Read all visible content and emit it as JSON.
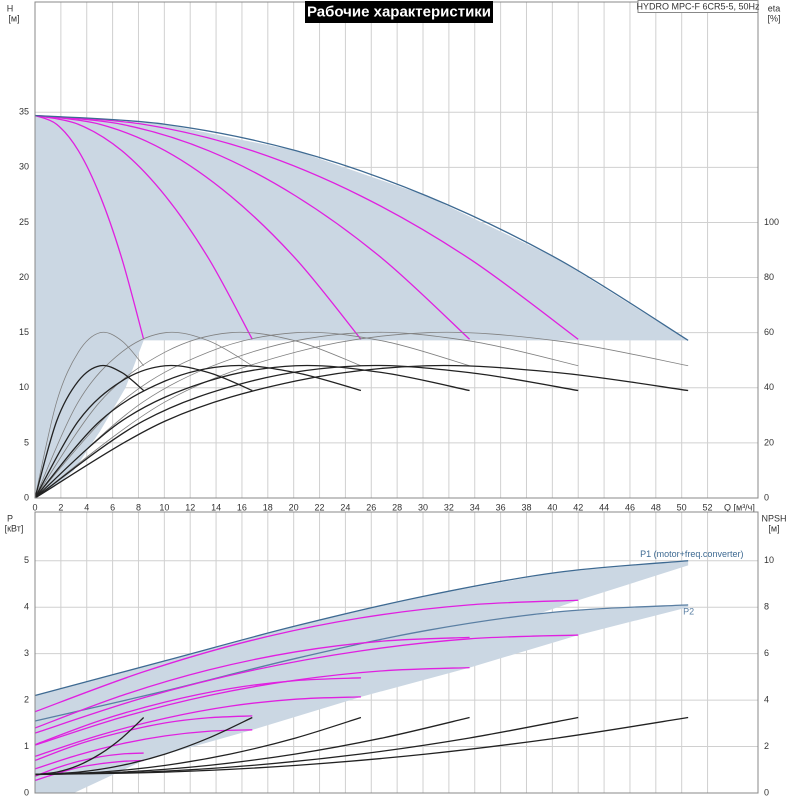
{
  "title": "Рабочие характеристики",
  "model": "HYDRO MPC-F 6CR5-5, 50Hz",
  "chart_data": [
    {
      "type": "line",
      "x_label": "Q [м³/ч]",
      "y_label": "H",
      "y_unit": "[м]",
      "y2_label": "eta",
      "y2_unit": "[%]",
      "xlim": [
        0,
        55.9
      ],
      "xticks": [
        0,
        2,
        4,
        6,
        8,
        10,
        12,
        14,
        16,
        18,
        20,
        22,
        24,
        26,
        28,
        30,
        32,
        34,
        36,
        38,
        40,
        42,
        44,
        46,
        48,
        50,
        52
      ],
      "ylim": [
        0,
        45
      ],
      "yticks": [
        0,
        5,
        10,
        15,
        20,
        25,
        30,
        35
      ],
      "y2lim": [
        0,
        180
      ],
      "y2ticks": [
        0,
        20,
        40,
        60,
        80,
        100
      ],
      "grid": true,
      "areas": [
        {
          "color": "#cbd7e3",
          "x": [
            0,
            10.1,
            20.2,
            30.3,
            40.4,
            50.5,
            8.4,
            7,
            5,
            3,
            1.5,
            0
          ],
          "values": [
            34.7,
            33.9,
            31.5,
            27.4,
            21.7,
            14.3,
            14.3,
            10,
            6,
            2.5,
            1,
            0
          ]
        }
      ],
      "series": [
        {
          "color": "#e020e0",
          "x": [
            0,
            1.68,
            3.36,
            5.04,
            6.72,
            8.4
          ],
          "values": [
            34.7,
            33.9,
            31.5,
            27.4,
            21.7,
            14.4
          ]
        },
        {
          "color": "#e020e0",
          "x": [
            0,
            3.36,
            6.72,
            10.08,
            13.44,
            16.8
          ],
          "values": [
            34.7,
            33.9,
            31.5,
            27.4,
            21.7,
            14.4
          ]
        },
        {
          "color": "#e020e0",
          "x": [
            0,
            5.04,
            10.08,
            15.12,
            20.16,
            25.2
          ],
          "values": [
            34.7,
            33.9,
            31.5,
            27.4,
            21.7,
            14.4
          ]
        },
        {
          "color": "#e020e0",
          "x": [
            0,
            6.72,
            13.44,
            20.16,
            26.88,
            33.6
          ],
          "values": [
            34.7,
            33.9,
            31.5,
            27.4,
            21.7,
            14.4
          ]
        },
        {
          "color": "#e020e0",
          "x": [
            0,
            8.4,
            16.8,
            25.2,
            33.6,
            42
          ],
          "values": [
            34.7,
            33.9,
            31.5,
            27.4,
            21.7,
            14.4
          ]
        },
        {
          "color": "#3e6a92",
          "x": [
            0,
            10.1,
            20.2,
            30.3,
            40.4,
            50.5
          ],
          "values": [
            34.7,
            33.9,
            31.5,
            27.4,
            21.7,
            14.3
          ]
        },
        {
          "color": "#808080",
          "axis": "y2",
          "x": [
            0,
            1.68,
            3.36,
            5.04,
            6.72,
            8.4
          ],
          "values": [
            0,
            35,
            53,
            60,
            57,
            48
          ]
        },
        {
          "color": "#808080",
          "axis": "y2",
          "x": [
            0,
            3.36,
            6.72,
            10.08,
            13.44,
            16.8
          ],
          "values": [
            0,
            35,
            53,
            60,
            57,
            48
          ]
        },
        {
          "color": "#808080",
          "axis": "y2",
          "x": [
            0,
            5.04,
            10.08,
            15.12,
            20.16,
            25.2
          ],
          "values": [
            0,
            35,
            53,
            60,
            57,
            48
          ]
        },
        {
          "color": "#808080",
          "axis": "y2",
          "x": [
            0,
            6.72,
            13.44,
            20.16,
            26.88,
            33.6
          ],
          "values": [
            0,
            35,
            53,
            60,
            57,
            48
          ]
        },
        {
          "color": "#808080",
          "axis": "y2",
          "x": [
            0,
            8.4,
            16.8,
            25.2,
            33.6,
            42
          ],
          "values": [
            0,
            35,
            53,
            60,
            57,
            48
          ]
        },
        {
          "color": "#808080",
          "axis": "y2",
          "x": [
            0,
            10.1,
            20.2,
            30.3,
            40.4,
            50.5
          ],
          "values": [
            0,
            35,
            53,
            60,
            57,
            48
          ]
        },
        {
          "color": "#222222",
          "axis": "y2",
          "x": [
            0,
            1.68,
            3.36,
            5.04,
            6.72,
            8.4
          ],
          "values": [
            0,
            28,
            42.5,
            48,
            45.5,
            39
          ]
        },
        {
          "color": "#222222",
          "axis": "y2",
          "x": [
            0,
            3.36,
            6.72,
            10.08,
            13.44,
            16.8
          ],
          "values": [
            0,
            28,
            42.5,
            48,
            45.5,
            39
          ]
        },
        {
          "color": "#222222",
          "axis": "y2",
          "x": [
            0,
            5.04,
            10.08,
            15.12,
            20.16,
            25.2
          ],
          "values": [
            0,
            28,
            42.5,
            48,
            45.5,
            39
          ]
        },
        {
          "color": "#222222",
          "axis": "y2",
          "x": [
            0,
            6.72,
            13.44,
            20.16,
            26.88,
            33.6
          ],
          "values": [
            0,
            28,
            42.5,
            48,
            45.5,
            39
          ]
        },
        {
          "color": "#222222",
          "axis": "y2",
          "x": [
            0,
            8.4,
            16.8,
            25.2,
            33.6,
            42
          ],
          "values": [
            0,
            28,
            42.5,
            48,
            45.5,
            39
          ]
        },
        {
          "color": "#222222",
          "axis": "y2",
          "x": [
            0,
            10.1,
            20.2,
            30.3,
            40.4,
            50.5
          ],
          "values": [
            0,
            28,
            42.5,
            48,
            45.5,
            39
          ]
        }
      ]
    },
    {
      "type": "line",
      "y_label": "P",
      "y_unit": "[кВт]",
      "y2_label": "NPSH",
      "y2_unit": "[м]",
      "xlim": [
        0,
        55.9
      ],
      "ylim": [
        0,
        6.05
      ],
      "yticks": [
        0,
        1,
        2,
        3,
        4,
        5
      ],
      "y2lim": [
        0,
        12.1
      ],
      "y2ticks": [
        0,
        2,
        4,
        6,
        8,
        10
      ],
      "grid": true,
      "areas": [
        {
          "color": "#cbd7e3",
          "x": [
            0,
            10.1,
            20.2,
            30.3,
            40.4,
            50.5,
            50.5,
            42,
            33.6,
            25.2,
            16.8,
            8.4,
            3,
            0
          ],
          "values": [
            2.1,
            2.85,
            3.6,
            4.25,
            4.75,
            5.0,
            4.9,
            4.15,
            3.35,
            2.48,
            1.66,
            0.86,
            0,
            0
          ]
        },
        {
          "color": "#cbd7e3",
          "x": [
            0,
            10.1,
            20.2,
            30.3,
            40.4,
            50.5,
            50.5,
            42,
            33.6,
            25.2,
            16.8,
            8.4,
            3,
            0
          ],
          "values": [
            1.55,
            2.2,
            2.9,
            3.5,
            3.9,
            4.05,
            4.0,
            3.4,
            2.7,
            2.07,
            1.36,
            0.7,
            0,
            0
          ]
        }
      ],
      "series": [
        {
          "name": "P1 (motor+freq.converter)",
          "color": "#3e6a92",
          "x": [
            0,
            10.1,
            20.2,
            30.3,
            40.4,
            50.5
          ],
          "values": [
            2.1,
            2.85,
            3.6,
            4.25,
            4.75,
            5.0
          ]
        },
        {
          "name": "P2",
          "color": "#5a7fa3",
          "x": [
            0,
            10.1,
            20.2,
            30.3,
            40.4,
            50.5
          ],
          "values": [
            1.55,
            2.2,
            2.9,
            3.5,
            3.9,
            4.05
          ]
        },
        {
          "color": "#e020e0",
          "x": [
            0,
            1.68,
            3.36,
            5.04,
            6.72,
            8.4
          ],
          "values": [
            0.36,
            0.54,
            0.68,
            0.78,
            0.84,
            0.86
          ]
        },
        {
          "color": "#e020e0",
          "x": [
            0,
            3.36,
            6.72,
            10.08,
            13.44,
            16.8
          ],
          "values": [
            0.7,
            1.05,
            1.31,
            1.51,
            1.62,
            1.66
          ]
        },
        {
          "color": "#e020e0",
          "x": [
            0,
            5.04,
            10.08,
            15.12,
            20.16,
            25.2
          ],
          "values": [
            1.04,
            1.56,
            1.96,
            2.25,
            2.42,
            2.48
          ]
        },
        {
          "color": "#e020e0",
          "x": [
            0,
            6.72,
            13.44,
            20.16,
            26.88,
            33.6
          ],
          "values": [
            1.4,
            2.1,
            2.65,
            3.04,
            3.27,
            3.35
          ]
        },
        {
          "color": "#e020e0",
          "x": [
            0,
            8.4,
            16.8,
            25.2,
            33.6,
            42
          ],
          "values": [
            1.75,
            2.61,
            3.29,
            3.77,
            4.05,
            4.15
          ]
        },
        {
          "color": "#e020e0",
          "x": [
            0,
            1.68,
            3.36,
            5.04,
            6.72,
            8.4
          ],
          "values": [
            0.27,
            0.42,
            0.55,
            0.63,
            0.68,
            0.7
          ]
        },
        {
          "color": "#e020e0",
          "x": [
            0,
            3.36,
            6.72,
            10.08,
            13.44,
            16.8
          ],
          "values": [
            0.52,
            0.82,
            1.06,
            1.23,
            1.33,
            1.36
          ]
        },
        {
          "color": "#e020e0",
          "x": [
            0,
            5.04,
            10.08,
            15.12,
            20.16,
            25.2
          ],
          "values": [
            0.79,
            1.25,
            1.61,
            1.87,
            2.02,
            2.07
          ]
        },
        {
          "color": "#e020e0",
          "x": [
            0,
            6.72,
            13.44,
            20.16,
            26.88,
            33.6
          ],
          "values": [
            1.03,
            1.63,
            2.1,
            2.43,
            2.63,
            2.7
          ]
        },
        {
          "color": "#e020e0",
          "x": [
            0,
            8.4,
            16.8,
            25.2,
            33.6,
            42
          ],
          "values": [
            1.29,
            2.05,
            2.64,
            3.06,
            3.32,
            3.4
          ]
        },
        {
          "color": "#222222",
          "axis": "y2",
          "x": [
            0,
            1.68,
            3.36,
            5.04,
            6.72,
            8.4
          ],
          "values": [
            0.8,
            0.9,
            1.19,
            1.68,
            2.37,
            3.25
          ]
        },
        {
          "color": "#222222",
          "axis": "y2",
          "x": [
            0,
            3.36,
            6.72,
            10.08,
            13.44,
            16.8
          ],
          "values": [
            0.8,
            0.9,
            1.19,
            1.68,
            2.37,
            3.25
          ]
        },
        {
          "color": "#222222",
          "axis": "y2",
          "x": [
            0,
            5.04,
            10.08,
            15.12,
            20.16,
            25.2
          ],
          "values": [
            0.8,
            0.9,
            1.19,
            1.68,
            2.37,
            3.25
          ]
        },
        {
          "color": "#222222",
          "axis": "y2",
          "x": [
            0,
            6.72,
            13.44,
            20.16,
            26.88,
            33.6
          ],
          "values": [
            0.8,
            0.9,
            1.19,
            1.68,
            2.37,
            3.25
          ]
        },
        {
          "color": "#222222",
          "axis": "y2",
          "x": [
            0,
            8.4,
            16.8,
            25.2,
            33.6,
            42
          ],
          "values": [
            0.8,
            0.9,
            1.19,
            1.68,
            2.37,
            3.25
          ]
        },
        {
          "color": "#222222",
          "axis": "y2",
          "x": [
            0,
            10.1,
            20.2,
            30.3,
            40.4,
            50.5
          ],
          "values": [
            0.8,
            0.9,
            1.19,
            1.68,
            2.37,
            3.25
          ]
        }
      ]
    }
  ]
}
